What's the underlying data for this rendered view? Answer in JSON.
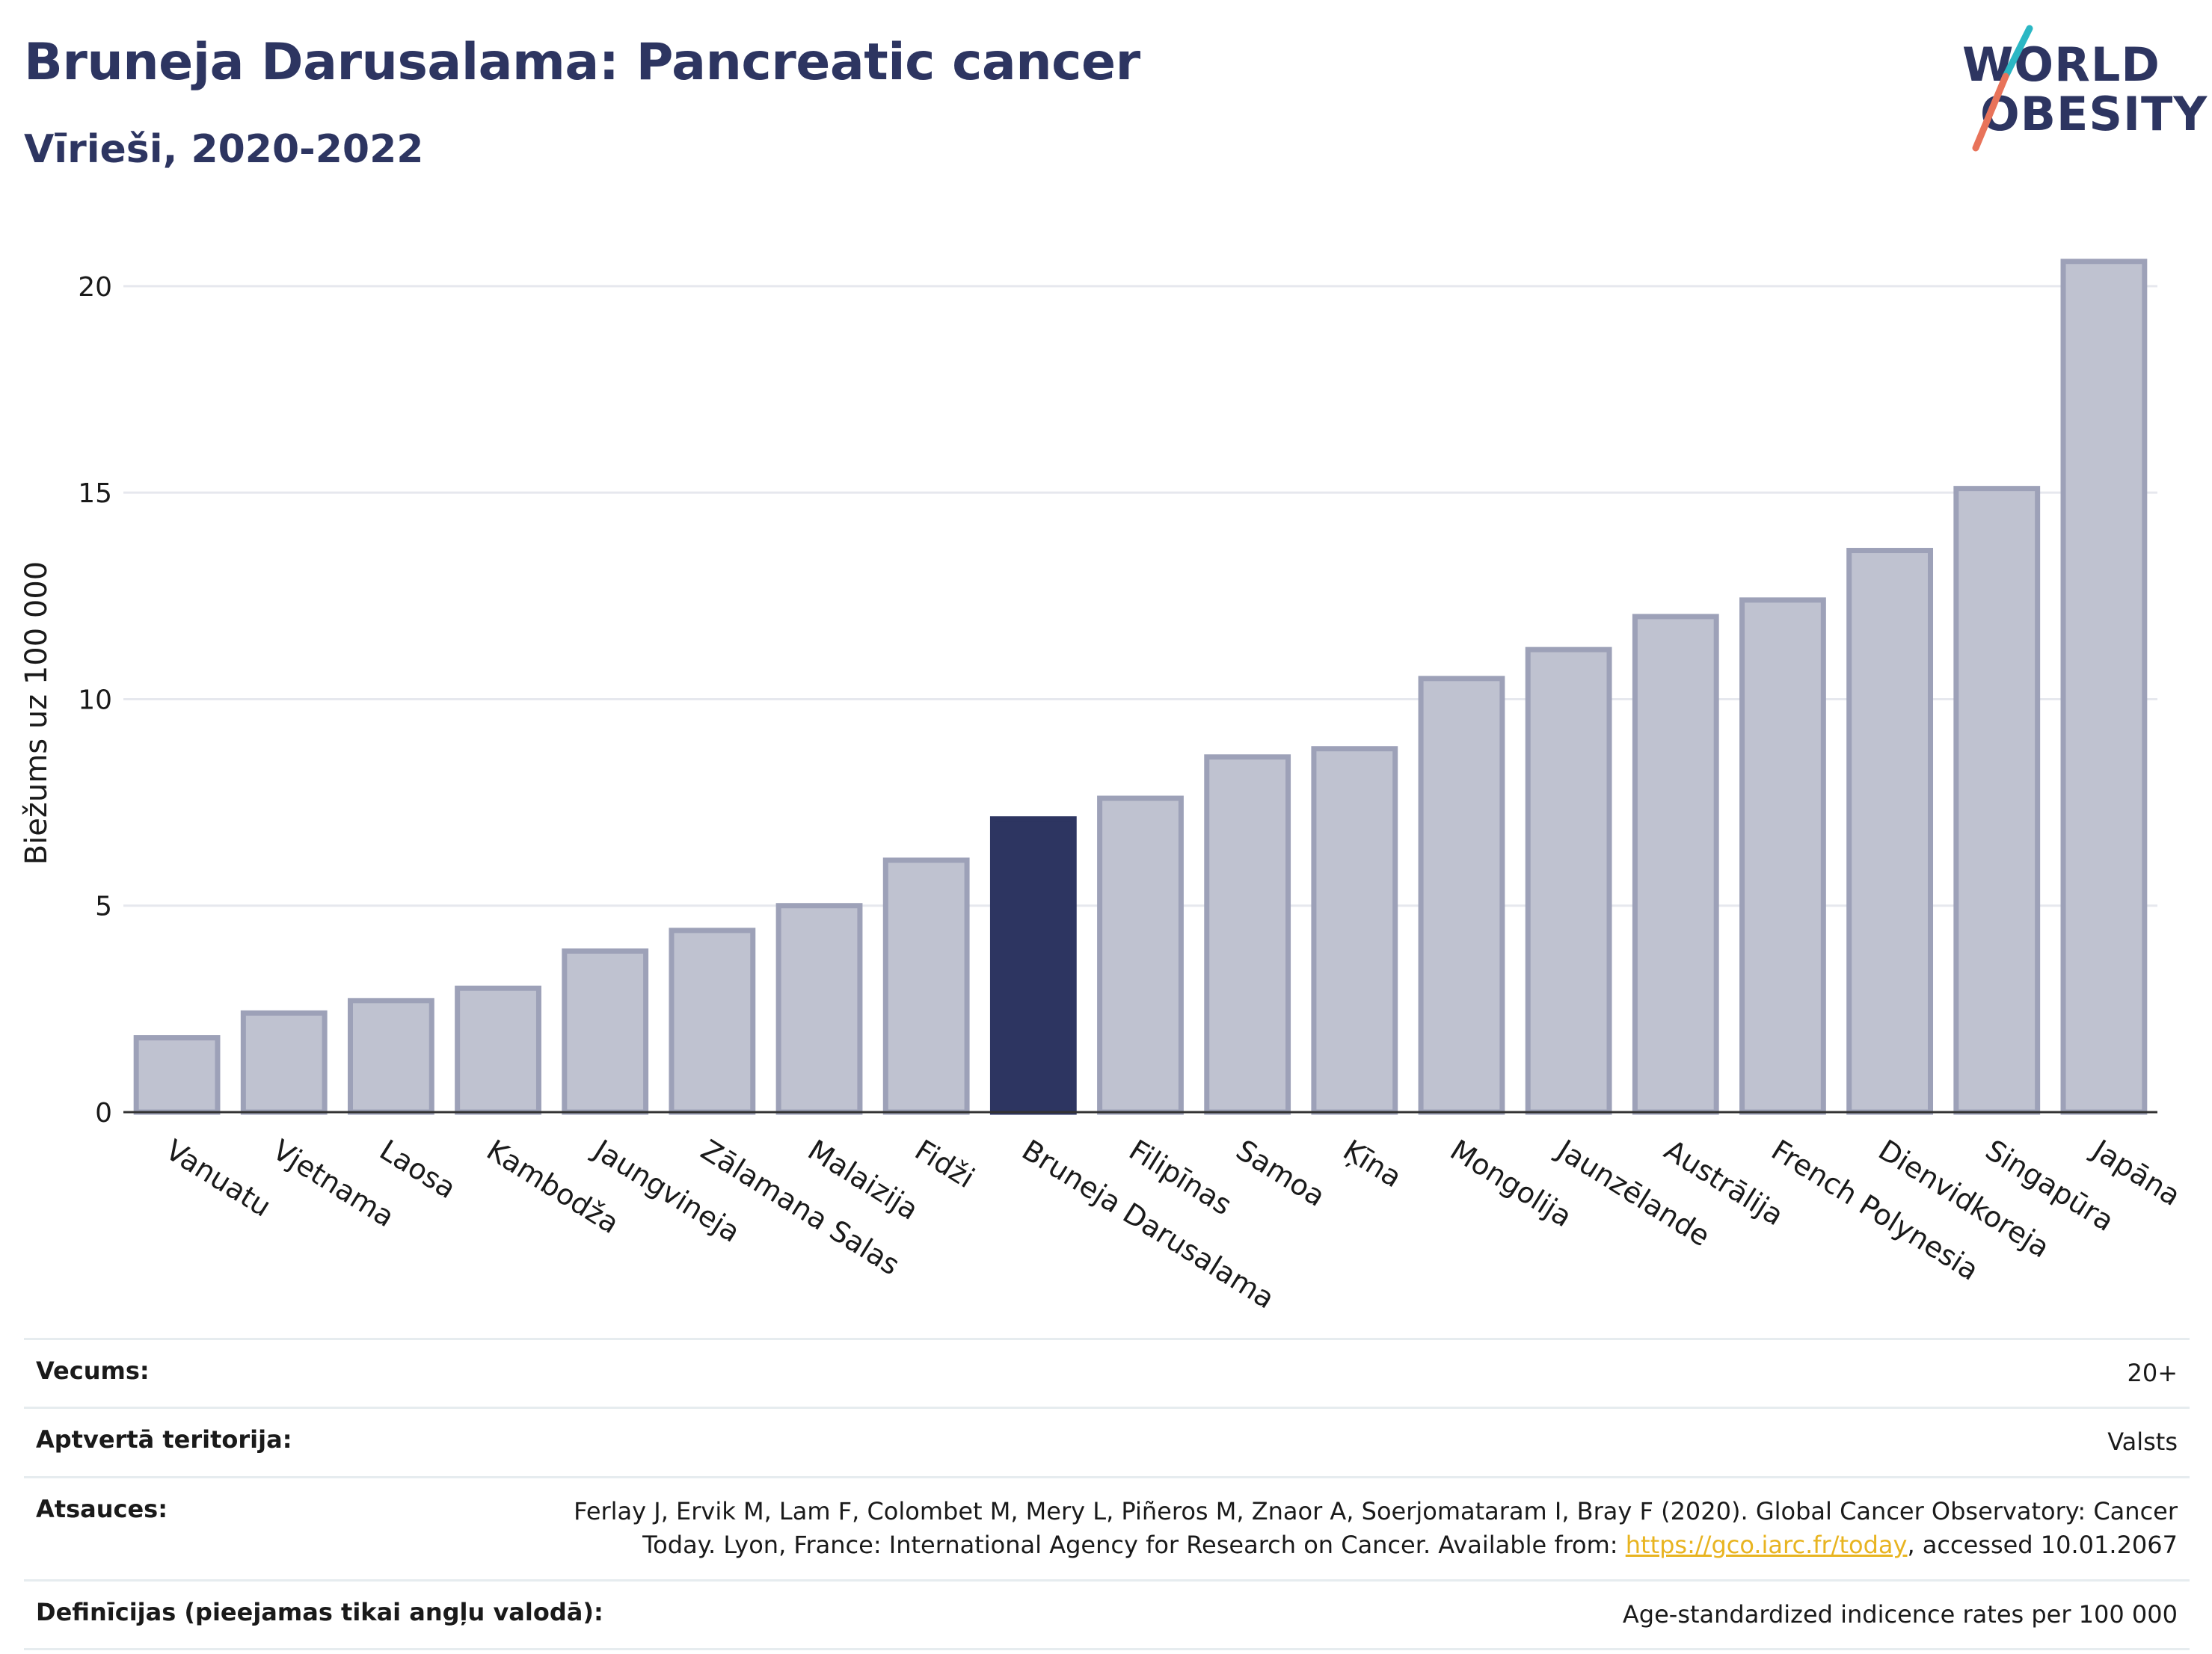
{
  "header": {
    "title": "Bruneja Darusalama: Pancreatic cancer",
    "subtitle": "Vīrieši, 2020-2022"
  },
  "logo": {
    "line1": "WORLD",
    "line2": "OBESITY",
    "accent_colors": [
      "#2bb7c4",
      "#e8735a"
    ]
  },
  "chart_data": {
    "type": "bar",
    "ylabel": "Biežums uz 100 000",
    "ylim": [
      0,
      21.5
    ],
    "yticks": [
      0,
      5,
      10,
      15,
      20
    ],
    "grid": true,
    "highlight": "Bruneja Darusalama",
    "colors": {
      "bar": "#bfc2d0",
      "bar_edge": "#9da1b8",
      "highlight": "#2d3561"
    },
    "categories": [
      "Vanuatu",
      "Vjetnama",
      "Laosa",
      "Kambodža",
      "Jaungvineja",
      "Zālamana Salas",
      "Malaizija",
      "Fidži",
      "Bruneja Darusalama",
      "Filipīnas",
      "Samoa",
      "Ķīna",
      "Mongolija",
      "Jaunzēlande",
      "Austrālija",
      "French Polynesia",
      "Dienvidkoreja",
      "Singapūra",
      "Japāna"
    ],
    "values": [
      1.8,
      2.4,
      2.7,
      3.0,
      3.9,
      4.4,
      5.0,
      6.1,
      7.1,
      7.6,
      8.6,
      8.8,
      10.5,
      11.2,
      12.0,
      12.4,
      13.6,
      15.1,
      20.6
    ]
  },
  "meta": {
    "rows": [
      {
        "label": "Vecums:",
        "value": "20+"
      },
      {
        "label": "Aptvertā teritorija:",
        "value": "Valsts"
      },
      {
        "label": "Atsauces:",
        "value_pre": "Ferlay J, Ervik M, Lam F, Colombet M, Mery L, Piñeros M, Znaor A, Soerjomataram I, Bray F (2020). Global Cancer Observatory: Cancer Today. Lyon, France: International Agency for Research on Cancer. Available from: ",
        "link": "https://gco.iarc.fr/today",
        "value_post": ", accessed 10.01.2067"
      },
      {
        "label": "Definīcijas (pieejamas tikai angļu valodā):",
        "value": "Age-standardized indicence rates per 100 000"
      }
    ]
  }
}
